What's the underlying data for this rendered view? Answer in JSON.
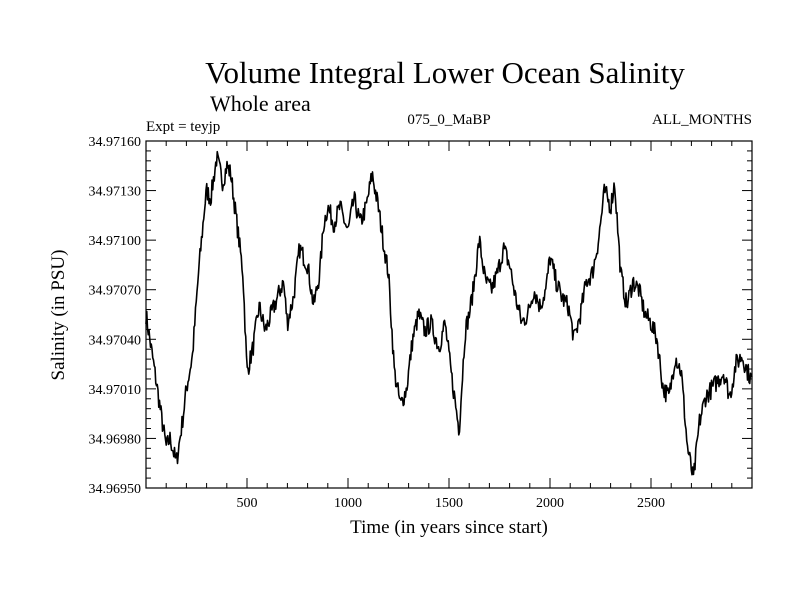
{
  "chart_data": {
    "type": "line",
    "title": "Volume Integral Lower Ocean Salinity",
    "subtitle": "Whole area",
    "experiment_label": "Expt = teyjp",
    "run_label": "075_0_MaBP",
    "months_label": "ALL_MONTHS",
    "xlabel": "Time (in years since start)",
    "ylabel": "Salinity (in PSU)",
    "xlim": [
      0,
      3000
    ],
    "ylim": [
      34.9695,
      34.9716
    ],
    "x_ticks": [
      500,
      1000,
      1500,
      2000,
      2500
    ],
    "x_tick_labels": [
      "500",
      "1000",
      "1500",
      "2000",
      "2500"
    ],
    "y_ticks": [
      34.9695,
      34.9698,
      34.9701,
      34.9704,
      34.9707,
      34.971,
      34.9713,
      34.9716
    ],
    "y_tick_labels": [
      "34.96950",
      "34.96980",
      "34.97010",
      "34.97040",
      "34.97070",
      "34.97100",
      "34.97130",
      "34.97160"
    ],
    "series": [
      {
        "name": "Salinity",
        "color": "#000000",
        "x": [
          0,
          50,
          80,
          100,
          120,
          150,
          180,
          200,
          230,
          260,
          290,
          300,
          320,
          350,
          380,
          400,
          420,
          450,
          480,
          500,
          530,
          560,
          590,
          620,
          650,
          680,
          700,
          730,
          760,
          800,
          830,
          860,
          880,
          900,
          930,
          960,
          1000,
          1030,
          1060,
          1090,
          1120,
          1150,
          1180,
          1200,
          1230,
          1260,
          1290,
          1320,
          1350,
          1380,
          1410,
          1450,
          1480,
          1510,
          1550,
          1580,
          1600,
          1620,
          1650,
          1680,
          1710,
          1740,
          1770,
          1800,
          1830,
          1860,
          1890,
          1920,
          1950,
          1980,
          2000,
          2030,
          2060,
          2090,
          2120,
          2150,
          2180,
          2210,
          2240,
          2270,
          2300,
          2320,
          2350,
          2380,
          2410,
          2440,
          2470,
          2500,
          2530,
          2560,
          2590,
          2620,
          2650,
          2680,
          2710,
          2740,
          2770,
          2800,
          2830,
          2860,
          2890,
          2920,
          2950,
          2980,
          3000
        ],
        "y": [
          34.97055,
          34.97015,
          34.9699,
          34.96975,
          34.9698,
          34.96965,
          34.9699,
          34.9701,
          34.9703,
          34.9708,
          34.9712,
          34.9713,
          34.97125,
          34.9715,
          34.97135,
          34.97145,
          34.9714,
          34.9711,
          34.9708,
          34.9702,
          34.97035,
          34.9706,
          34.97045,
          34.97055,
          34.97065,
          34.97075,
          34.9705,
          34.97065,
          34.97095,
          34.97085,
          34.9706,
          34.9708,
          34.9711,
          34.9712,
          34.9711,
          34.9712,
          34.97105,
          34.97125,
          34.9711,
          34.9712,
          34.9714,
          34.9712,
          34.97095,
          34.9708,
          34.9702,
          34.97,
          34.9701,
          34.9704,
          34.97055,
          34.97045,
          34.9705,
          34.97035,
          34.9705,
          34.9702,
          34.96985,
          34.97045,
          34.97055,
          34.9707,
          34.971,
          34.97075,
          34.9707,
          34.9708,
          34.97095,
          34.97085,
          34.97065,
          34.9705,
          34.97055,
          34.9707,
          34.9706,
          34.9707,
          34.9709,
          34.97075,
          34.97065,
          34.9706,
          34.9704,
          34.97055,
          34.97075,
          34.9708,
          34.971,
          34.9713,
          34.9712,
          34.97135,
          34.9708,
          34.9706,
          34.97075,
          34.9707,
          34.97055,
          34.9705,
          34.9704,
          34.9701,
          34.97005,
          34.9703,
          34.9702,
          34.96975,
          34.96955,
          34.9699,
          34.97005,
          34.9701,
          34.97015,
          34.9702,
          34.97005,
          34.97025,
          34.9703,
          34.9702,
          34.97015
        ]
      }
    ]
  }
}
